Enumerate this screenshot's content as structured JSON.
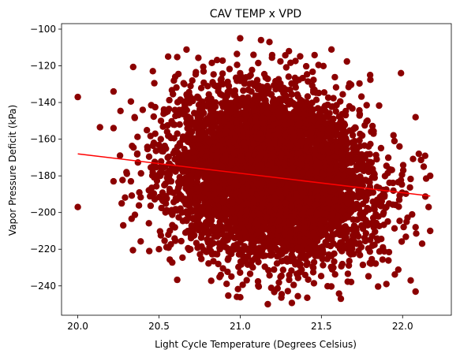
{
  "chart_data": {
    "type": "scatter",
    "title": "CAV TEMP x VPD",
    "xlabel": "Light Cycle Temperature (Degrees Celsius)",
    "ylabel": "Vapor Pressure Deficit (kPa)",
    "xlim": [
      19.9,
      22.3
    ],
    "ylim": [
      -256,
      -97
    ],
    "xticks": [
      "20.0",
      "20.5",
      "21.0",
      "21.5",
      "22.0"
    ],
    "xtick_values": [
      20.0,
      20.5,
      21.0,
      21.5,
      22.0
    ],
    "yticks": [
      "−100",
      "−120",
      "−140",
      "−160",
      "−180",
      "−200",
      "−220",
      "−240"
    ],
    "ytick_values": [
      -100,
      -120,
      -140,
      -160,
      -180,
      -200,
      -220,
      -240
    ],
    "grid": false,
    "legend": "none",
    "colors": {
      "points": "#8b0000",
      "trend": "#ff0000"
    },
    "trend_line": {
      "x": [
        20.0,
        22.17
      ],
      "y": [
        -168,
        -191
      ]
    },
    "cluster": {
      "n_points": 6000,
      "x_mean": 21.18,
      "x_std": 0.3,
      "y_mean": -180,
      "y_std": 22,
      "y_slope": -10.6,
      "x_range": [
        20.0,
        22.17
      ],
      "y_range": [
        -250,
        -105
      ]
    },
    "outliers": [
      {
        "x": 20.0,
        "y": -137
      },
      {
        "x": 20.0,
        "y": -197
      },
      {
        "x": 20.22,
        "y": -134
      },
      {
        "x": 20.22,
        "y": -154
      },
      {
        "x": 20.27,
        "y": -195
      },
      {
        "x": 20.28,
        "y": -207
      },
      {
        "x": 20.26,
        "y": -169
      },
      {
        "x": 20.44,
        "y": -221
      },
      {
        "x": 20.5,
        "y": -220
      },
      {
        "x": 20.35,
        "y": -148
      },
      {
        "x": 20.4,
        "y": -144
      },
      {
        "x": 20.6,
        "y": -126
      },
      {
        "x": 21.0,
        "y": -105
      },
      {
        "x": 21.18,
        "y": -107
      },
      {
        "x": 21.17,
        "y": -250
      },
      {
        "x": 20.98,
        "y": -246
      },
      {
        "x": 21.62,
        "y": -247
      },
      {
        "x": 21.99,
        "y": -124
      },
      {
        "x": 22.08,
        "y": -208
      },
      {
        "x": 22.16,
        "y": -197
      },
      {
        "x": 22.17,
        "y": -180
      },
      {
        "x": 22.17,
        "y": -210
      },
      {
        "x": 22.13,
        "y": -175
      },
      {
        "x": 22.12,
        "y": -217
      },
      {
        "x": 22.08,
        "y": -148
      },
      {
        "x": 22.05,
        "y": -237
      },
      {
        "x": 22.1,
        "y": -168
      },
      {
        "x": 21.9,
        "y": -239
      },
      {
        "x": 21.8,
        "y": -125
      },
      {
        "x": 20.22,
        "y": -183
      },
      {
        "x": 20.3,
        "y": -178
      },
      {
        "x": 21.3,
        "y": -112
      }
    ]
  }
}
